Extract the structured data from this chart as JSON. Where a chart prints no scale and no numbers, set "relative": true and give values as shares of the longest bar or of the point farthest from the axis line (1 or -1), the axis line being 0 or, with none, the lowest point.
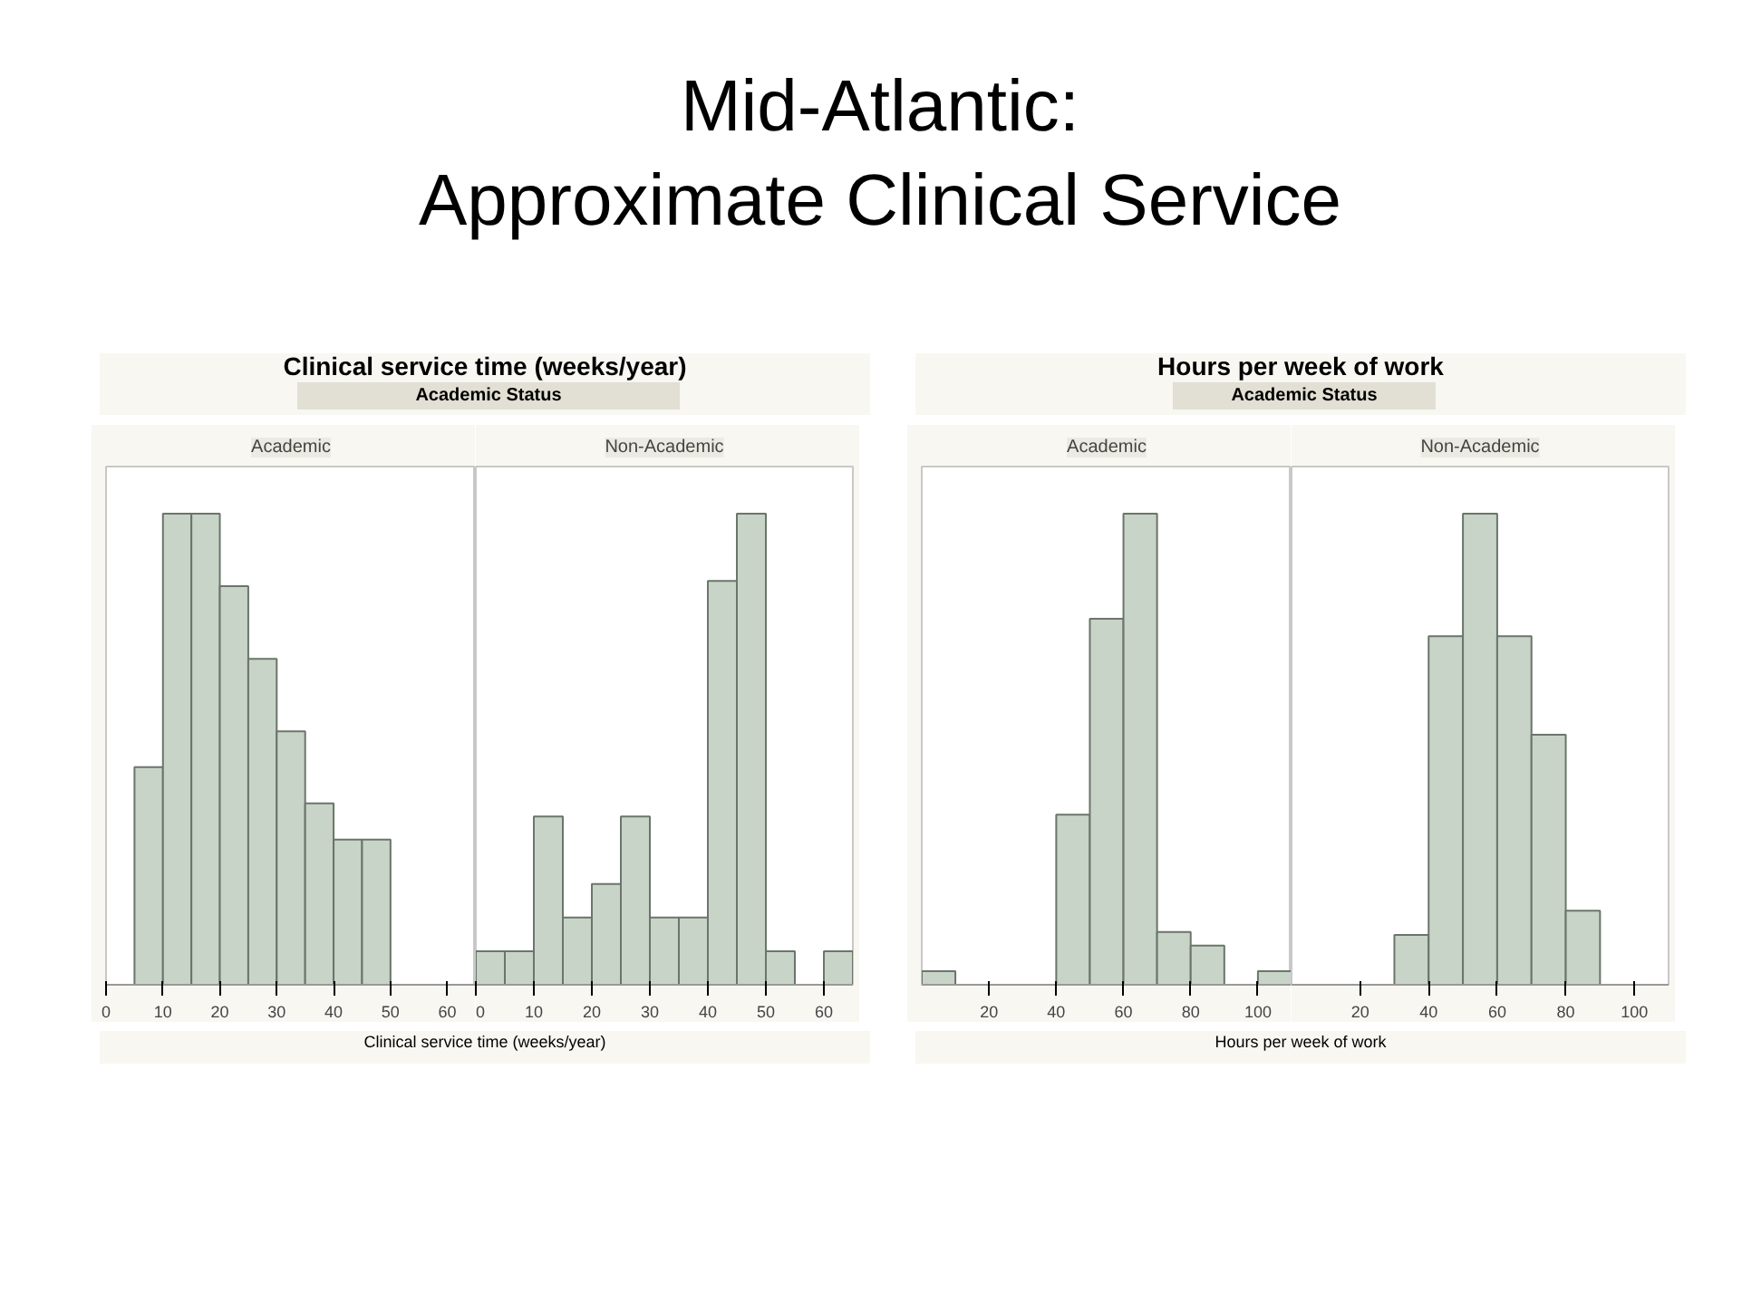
{
  "chart_data": [
    {
      "type": "bar",
      "title": "Clinical service time (weeks/year)",
      "annotations": [
        "Mid-Atlantic:\nApproximate Clinical Service",
        "Academic Status"
      ],
      "subtitle": "Academic",
      "xlabel": "Clinical service time (weeks/year)",
      "relative": true,
      "grid": false,
      "color": "#c8d4c8",
      "xlim": [
        0,
        65
      ],
      "xticks": [
        0,
        10,
        20,
        30,
        40,
        50,
        60
      ],
      "x": [
        7.5,
        12.5,
        17.5,
        22.5,
        27.5,
        32.5,
        37.5,
        42.5,
        47.5
      ],
      "values": [
        0.462,
        1,
        1,
        0.846,
        0.692,
        0.538,
        0.385,
        0.308,
        0.308
      ]
    },
    {
      "type": "bar",
      "subtitle": "Non-Academic",
      "relative": true,
      "grid": false,
      "color": "#c8d4c8",
      "xlim": [
        0,
        65
      ],
      "xticks": [
        0,
        10,
        20,
        30,
        40,
        50,
        60
      ],
      "x": [
        2.5,
        7.5,
        12.5,
        17.5,
        22.5,
        27.5,
        32.5,
        37.5,
        42.5,
        47.5,
        52.5,
        57.5,
        62.5
      ],
      "values": [
        0.071,
        0.071,
        0.357,
        0.143,
        0.214,
        0.357,
        0.143,
        0.143,
        0.857,
        1,
        0.071,
        null,
        0.071
      ]
    },
    {
      "type": "bar",
      "title": "Hours per week of work",
      "annotations": [
        "Academic Status"
      ],
      "subtitle": "Academic",
      "xlabel": "Hours per week of work",
      "relative": true,
      "grid": false,
      "color": "#c8d4c8",
      "xlim": [
        0,
        110
      ],
      "xticks": [
        20,
        40,
        60,
        80,
        100
      ],
      "x": [
        5,
        15,
        25,
        35,
        45,
        55,
        65,
        75,
        85,
        95,
        105
      ],
      "values": [
        0.029,
        null,
        null,
        null,
        0.361,
        0.777,
        1,
        0.112,
        0.083,
        null,
        0.029
      ]
    },
    {
      "type": "bar",
      "subtitle": "Non-Academic",
      "relative": true,
      "grid": false,
      "color": "#c8d4c8",
      "xlim": [
        0,
        110
      ],
      "xticks": [
        20,
        40,
        60,
        80,
        100
      ],
      "x": [
        35,
        45,
        55,
        65,
        75,
        85
      ],
      "values": [
        0.106,
        0.74,
        1,
        0.74,
        0.531,
        0.157
      ]
    }
  ]
}
